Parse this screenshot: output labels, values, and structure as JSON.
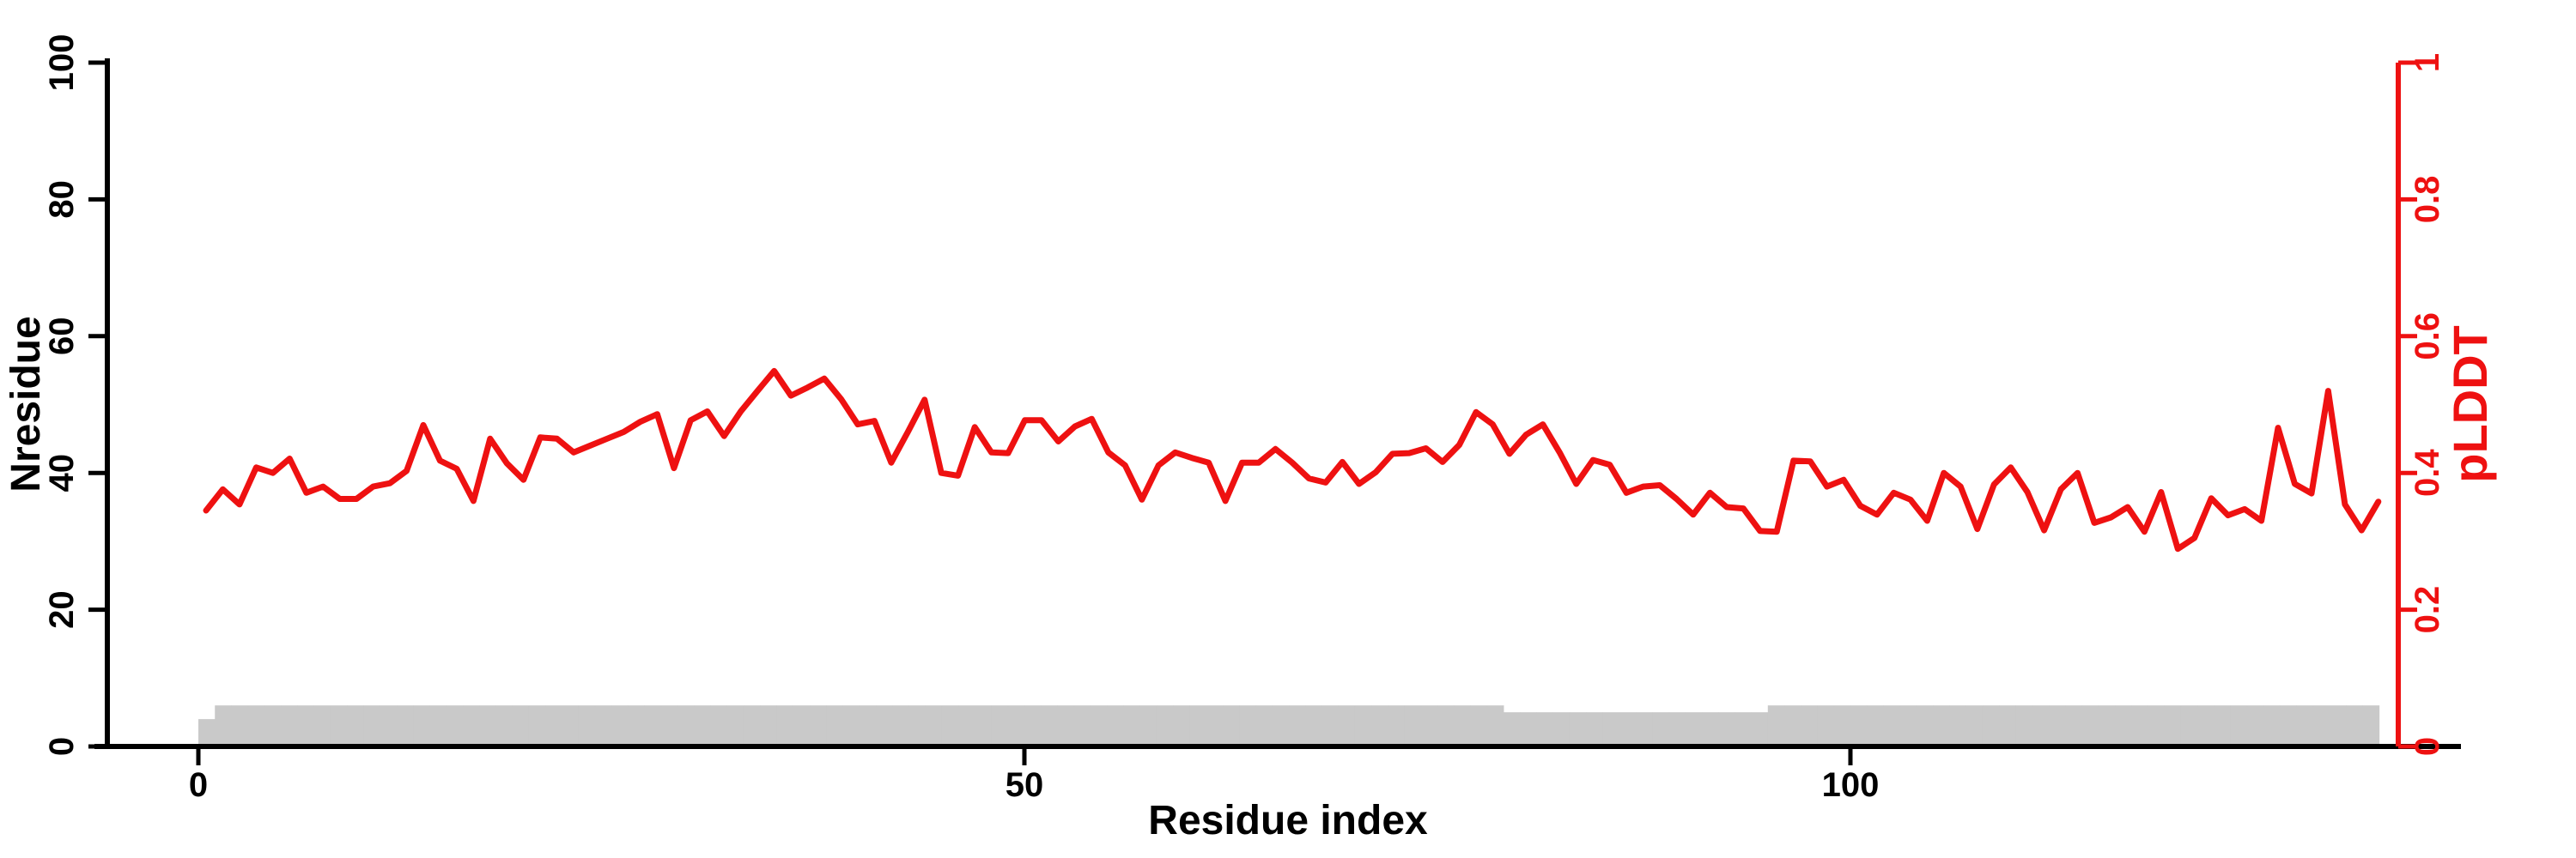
{
  "chart_data": {
    "type": "line",
    "title": "",
    "xlabel": "Residue index",
    "x_ticks": [
      0,
      50,
      100
    ],
    "x_range_shown": [
      0,
      137
    ],
    "left_axis": {
      "label": "Nresidue",
      "ticks": [
        0,
        20,
        40,
        60,
        80,
        100
      ],
      "range": [
        0,
        100
      ],
      "color": "#000000"
    },
    "right_axis": {
      "label": "pLDDT",
      "ticks": [
        "0",
        "0.2",
        "0.4",
        "0.6",
        "0.8",
        "1"
      ],
      "range": [
        0,
        1
      ],
      "color": "#ee1111"
    },
    "grid": false,
    "legend": "none",
    "bar_series": {
      "name": "Nresidue",
      "color": "#c9c9c9",
      "start_index": 0,
      "note": "contiguous gray bars, one per residue, encoded as value runs",
      "runs": [
        {
          "count": 1,
          "value": 4
        },
        {
          "count": 78,
          "value": 6
        },
        {
          "count": 16,
          "value": 5
        },
        {
          "count": 37,
          "value": 6
        }
      ]
    },
    "line_series": {
      "name": "pLDDT",
      "color": "#ee1111",
      "start_index": 1,
      "values": [
        0.345,
        0.376,
        0.354,
        0.408,
        0.4,
        0.421,
        0.371,
        0.38,
        0.362,
        0.362,
        0.38,
        0.385,
        0.403,
        0.47,
        0.418,
        0.406,
        0.359,
        0.45,
        0.414,
        0.39,
        0.452,
        0.45,
        0.43,
        0.44,
        0.45,
        0.46,
        0.475,
        0.486,
        0.407,
        0.477,
        0.49,
        0.454,
        0.49,
        0.52,
        0.549,
        0.513,
        0.525,
        0.538,
        0.508,
        0.471,
        0.476,
        0.415,
        0.46,
        0.507,
        0.4,
        0.396,
        0.467,
        0.43,
        0.429,
        0.477,
        0.477,
        0.446,
        0.468,
        0.479,
        0.43,
        0.411,
        0.361,
        0.411,
        0.43,
        0.422,
        0.415,
        0.359,
        0.415,
        0.415,
        0.435,
        0.415,
        0.392,
        0.386,
        0.416,
        0.384,
        0.401,
        0.428,
        0.429,
        0.436,
        0.416,
        0.441,
        0.489,
        0.471,
        0.428,
        0.456,
        0.471,
        0.43,
        0.384,
        0.419,
        0.412,
        0.371,
        0.38,
        0.382,
        0.362,
        0.339,
        0.371,
        0.35,
        0.348,
        0.315,
        0.314,
        0.418,
        0.417,
        0.38,
        0.39,
        0.352,
        0.339,
        0.371,
        0.361,
        0.33,
        0.4,
        0.38,
        0.318,
        0.383,
        0.408,
        0.372,
        0.316,
        0.376,
        0.4,
        0.327,
        0.335,
        0.35,
        0.314,
        0.372,
        0.289,
        0.305,
        0.363,
        0.338,
        0.347,
        0.33,
        0.466,
        0.384,
        0.37,
        0.52,
        0.354,
        0.316,
        0.358
      ]
    }
  }
}
